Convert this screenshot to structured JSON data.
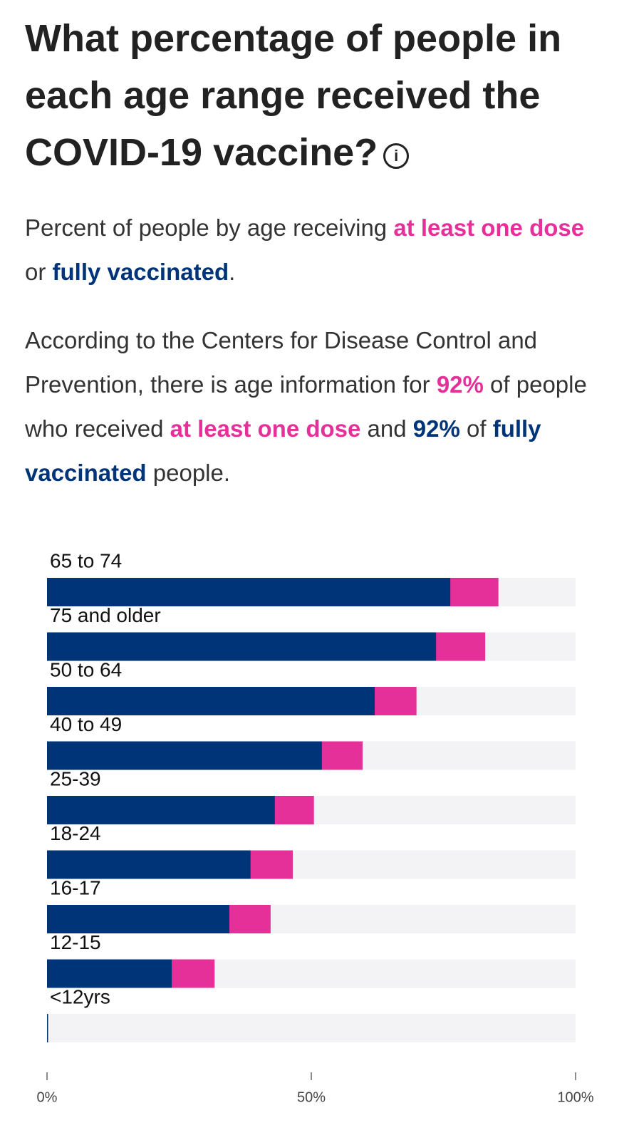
{
  "header": {
    "title": "What percentage of people in each age range received the COVID-19 vaccine?",
    "subtitle": [
      "Percent of people by age receiving ",
      " or ",
      "."
    ],
    "note": [
      "According to the Centers for Disease Control and Prevention, there is age information for ",
      "92%",
      " of people who received ",
      " and ",
      "92%",
      " of ",
      " people."
    ]
  },
  "chart_data": {
    "type": "overlay-bar",
    "categories": [
      "65 to 74",
      "75 and older",
      "50 to 64",
      "40 to 49",
      "25-39",
      "18-24",
      "16-17",
      "12-15",
      "<12yrs"
    ],
    "series": [
      {
        "name": "at least one dose",
        "color": "#e5309a",
        "values": [
          85.4,
          82.9,
          69.9,
          59.7,
          50.5,
          46.5,
          42.3,
          31.7,
          0.1
        ]
      },
      {
        "name": "fully vaccinated",
        "color": "#003478",
        "values": [
          76.3,
          73.6,
          62.0,
          52.0,
          43.1,
          38.5,
          34.5,
          23.6,
          0.1
        ]
      }
    ],
    "xlim": [
      0,
      100
    ],
    "xticks": [
      {
        "value": 0,
        "label": "0%"
      },
      {
        "value": 50,
        "label": "50%"
      },
      {
        "value": 100,
        "label": "100%"
      }
    ],
    "track_color": "#f3f3f5"
  }
}
